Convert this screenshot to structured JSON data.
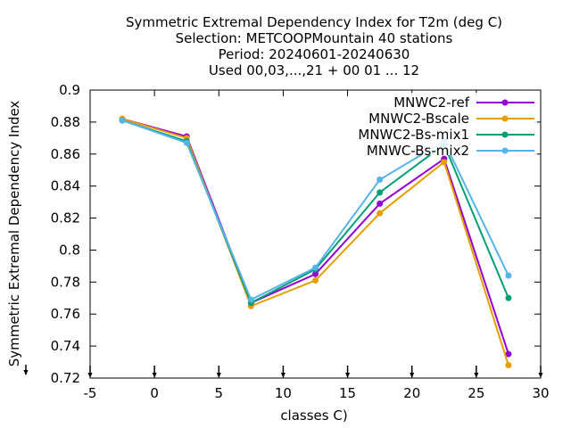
{
  "chart_data": {
    "type": "line",
    "title_lines": [
      "Symmetric Extremal Dependency Index  for T2m (deg C)",
      "Selection: METCOOPMountain     40 stations",
      "Period: 20240601-20240630",
      "Used 00,03,...,21 + 00 01 ... 12"
    ],
    "xlabel": "classes C)",
    "ylabel": "Symmetric Extremal Dependency Index",
    "xlim": [
      -5,
      30
    ],
    "ylim": [
      0.72,
      0.9
    ],
    "xticks": [
      -5,
      0,
      5,
      10,
      15,
      20,
      25,
      30
    ],
    "xtick_labels": [
      "-5",
      "0",
      "5",
      "10",
      "15",
      "20",
      "25",
      "30"
    ],
    "yticks": [
      0.72,
      0.74,
      0.76,
      0.78,
      0.8,
      0.82,
      0.84,
      0.86,
      0.88,
      0.9
    ],
    "ytick_labels": [
      "0.72",
      "0.74",
      "0.76",
      "0.78",
      "0.8",
      "0.82",
      "0.84",
      "0.86",
      "0.88",
      "0.9"
    ],
    "x": [
      -2.5,
      2.5,
      7.5,
      12.5,
      17.5,
      22.5,
      27.5
    ],
    "grid": false,
    "legend_position": "top-right",
    "series": [
      {
        "name": "MNWC2-ref",
        "color": "#9400d3",
        "values": [
          0.882,
          0.871,
          0.767,
          0.785,
          0.829,
          0.857,
          0.735
        ]
      },
      {
        "name": "MNWC2-Bscale",
        "color": "#e69f00",
        "values": [
          0.882,
          0.87,
          0.765,
          0.781,
          0.823,
          0.855,
          0.728
        ]
      },
      {
        "name": "MNWC2-Bs-mix1",
        "color": "#009e73",
        "values": [
          0.881,
          0.868,
          0.767,
          0.788,
          0.836,
          0.866,
          0.77
        ]
      },
      {
        "name": "MNWC-Bs-mix2",
        "color": "#56b4e9",
        "values": [
          0.881,
          0.867,
          0.769,
          0.789,
          0.844,
          0.868,
          0.784
        ]
      }
    ]
  }
}
